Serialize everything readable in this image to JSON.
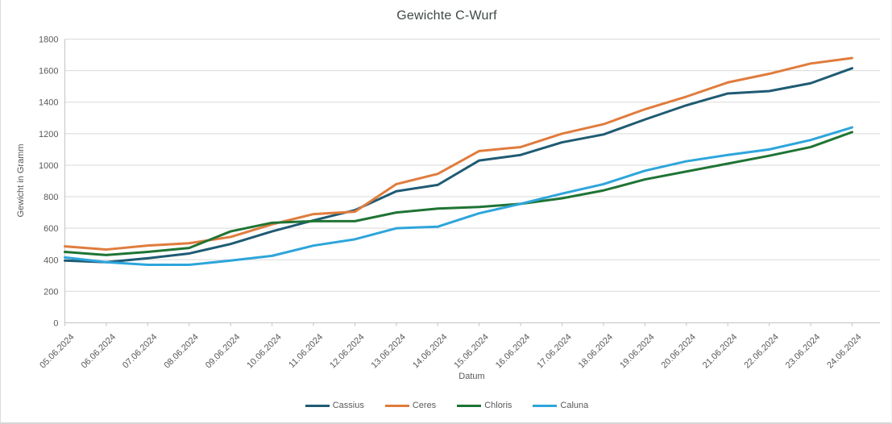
{
  "chart_data": {
    "type": "line",
    "title": "Gewichte C-Wurf",
    "xlabel": "Datum",
    "ylabel": "Gewicht in Gramm",
    "ylim": [
      0,
      1800
    ],
    "yticks": [
      0,
      200,
      400,
      600,
      800,
      1000,
      1200,
      1400,
      1600,
      1800
    ],
    "grid": "horizontal",
    "legend_position": "bottom-center",
    "categories": [
      "05.06.2024",
      "06.06.2024",
      "07.06.2024",
      "08.06.2024",
      "09.06.2024",
      "10.06.2024",
      "11.06.2024",
      "12.06.2024",
      "13.06.2024",
      "14.06.2024",
      "15.06.2024",
      "16.06.2024",
      "17.06.2024",
      "18.06.2024",
      "19.06.2024",
      "20.06.2024",
      "21.06.2024",
      "22.06.2024",
      "23.06.2024",
      "24.06.2024"
    ],
    "series": [
      {
        "name": "Cassius",
        "color": "#1f5b73",
        "values": [
          395,
          385,
          410,
          440,
          500,
          580,
          650,
          715,
          835,
          875,
          1030,
          1065,
          1145,
          1195,
          1290,
          1380,
          1455,
          1470,
          1520,
          1615
        ]
      },
      {
        "name": "Ceres",
        "color": "#e07c3d",
        "values": [
          485,
          465,
          490,
          505,
          545,
          625,
          690,
          705,
          880,
          945,
          1090,
          1115,
          1200,
          1260,
          1355,
          1435,
          1525,
          1580,
          1645,
          1680
        ]
      },
      {
        "name": "Chloris",
        "color": "#1f7434",
        "values": [
          450,
          430,
          450,
          475,
          580,
          635,
          645,
          645,
          700,
          725,
          735,
          755,
          790,
          840,
          910,
          960,
          1010,
          1060,
          1115,
          1210
        ]
      },
      {
        "name": "Caluna",
        "color": "#2ea5db",
        "values": [
          415,
          385,
          368,
          368,
          395,
          425,
          490,
          530,
          600,
          610,
          695,
          755,
          820,
          880,
          965,
          1025,
          1065,
          1100,
          1160,
          1240
        ]
      }
    ],
    "style": {
      "title_color": "#3f4747",
      "axis_text_color": "#595959",
      "gridline_color": "#d9d9d9",
      "axis_line_color": "#c3c3c3"
    }
  }
}
